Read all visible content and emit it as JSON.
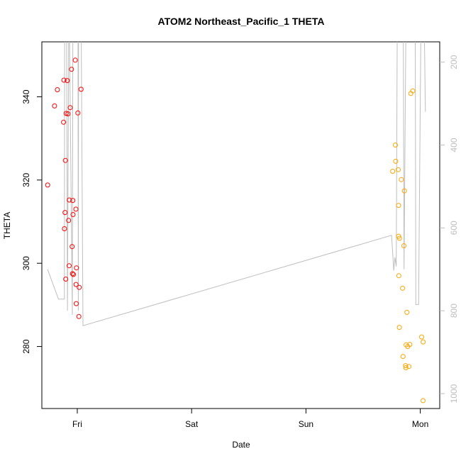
{
  "chart_data": {
    "type": "scatter",
    "title": "ATOM2 Northeast_Pacific_1 THETA",
    "xlabel": "Date",
    "ylabel": "THETA",
    "x_tick_labels": [
      "Fri",
      "Sat",
      "Sun",
      "Mon"
    ],
    "x_tick_days": [
      1,
      2,
      3,
      4
    ],
    "xlim": [
      0.69,
      4.17
    ],
    "ylim": [
      265.1,
      353.2
    ],
    "y_ticks": [
      280,
      300,
      320,
      340
    ],
    "right_axis": {
      "ticks": [
        200,
        400,
        600,
        800,
        1000
      ],
      "lim": [
        1036,
        151
      ],
      "reversed": true
    },
    "grid": false,
    "series": [
      {
        "color": "#ff0000",
        "points": [
          [
            0.741,
            318.8
          ],
          [
            0.801,
            337.8
          ],
          [
            0.826,
            341.7
          ],
          [
            0.883,
            344.0
          ],
          [
            0.88,
            333.9
          ],
          [
            0.888,
            308.3
          ],
          [
            0.893,
            312.2
          ],
          [
            0.896,
            324.7
          ],
          [
            0.902,
            336.0
          ],
          [
            0.913,
            343.9
          ],
          [
            0.918,
            335.9
          ],
          [
            0.924,
            310.3
          ],
          [
            0.929,
            299.4
          ],
          [
            0.93,
            315.2
          ],
          [
            0.938,
            337.4
          ],
          [
            0.949,
            346.6
          ],
          [
            0.955,
            304.0
          ],
          [
            0.958,
            297.5
          ],
          [
            0.961,
            315.1
          ],
          [
            0.966,
            297.3
          ],
          [
            0.963,
            311.7
          ],
          [
            0.982,
            348.8
          ],
          [
            0.988,
            313.0
          ],
          [
            0.989,
            294.9
          ],
          [
            0.991,
            290.3
          ],
          [
            0.993,
            298.9
          ],
          [
            1.005,
            336.1
          ],
          [
            1.014,
            287.2
          ],
          [
            1.017,
            294.2
          ],
          [
            1.033,
            341.8
          ],
          [
            0.899,
            296.2
          ]
        ]
      },
      {
        "color": "#ffa500",
        "points": [
          [
            3.759,
            322.1
          ],
          [
            3.782,
            328.4
          ],
          [
            3.785,
            324.5
          ],
          [
            3.807,
            322.5
          ],
          [
            3.81,
            313.9
          ],
          [
            3.81,
            306.5
          ],
          [
            3.813,
            297.0
          ],
          [
            3.817,
            284.6
          ],
          [
            3.818,
            306.0
          ],
          [
            3.834,
            320.1
          ],
          [
            3.845,
            294.0
          ],
          [
            3.849,
            277.6
          ],
          [
            3.857,
            304.2
          ],
          [
            3.861,
            317.4
          ],
          [
            3.871,
            275.4
          ],
          [
            3.874,
            274.9
          ],
          [
            3.876,
            280.4
          ],
          [
            3.883,
            288.2
          ],
          [
            3.89,
            280.0
          ],
          [
            3.9,
            275.2
          ],
          [
            3.908,
            280.5
          ],
          [
            3.917,
            340.8
          ],
          [
            3.934,
            341.4
          ],
          [
            4.012,
            282.3
          ],
          [
            4.025,
            281.1
          ],
          [
            4.024,
            267.0
          ]
        ]
      }
    ],
    "depth_line": {
      "color": "#bebebe",
      "points": [
        [
          0.74,
          700
        ],
        [
          0.835,
          772
        ],
        [
          0.887,
          772
        ],
        [
          0.89,
          5
        ],
        [
          0.905,
          5
        ],
        [
          0.914,
          800
        ],
        [
          0.927,
          5
        ],
        [
          0.957,
          810
        ],
        [
          0.962,
          5
        ],
        [
          0.985,
          5
        ],
        [
          1.006,
          5
        ],
        [
          1.009,
          800
        ],
        [
          1.012,
          5
        ],
        [
          1.024,
          5
        ],
        [
          1.032,
          5
        ],
        [
          1.05,
          836
        ],
        [
          3.749,
          618
        ],
        [
          3.768,
          703
        ],
        [
          3.778,
          671
        ],
        [
          3.79,
          693
        ],
        [
          3.8,
          5
        ],
        [
          3.85,
          5
        ],
        [
          3.858,
          700
        ],
        [
          3.877,
          5
        ],
        [
          3.955,
          5
        ],
        [
          3.961,
          785
        ],
        [
          3.985,
          785
        ],
        [
          4.009,
          5
        ],
        [
          4.03,
          5
        ],
        [
          4.045,
          320
        ]
      ]
    }
  }
}
